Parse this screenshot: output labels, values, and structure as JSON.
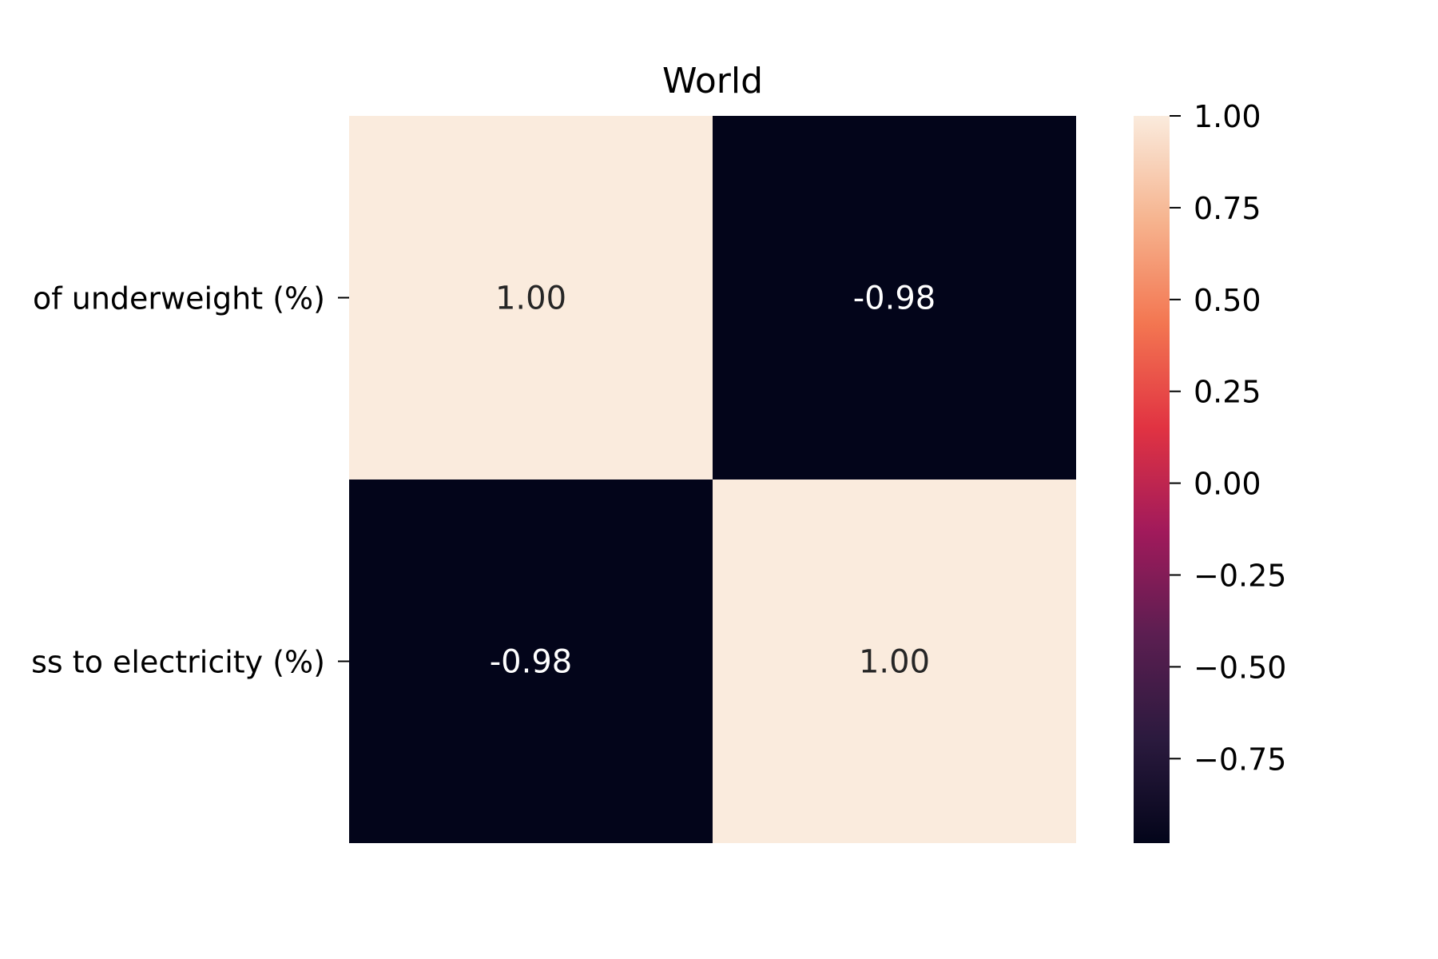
{
  "chart_data": {
    "type": "heatmap",
    "title": "World",
    "row_labels": [
      "of underweight (%)",
      "ss to electricity (%)"
    ],
    "matrix": [
      [
        1.0,
        -0.98
      ],
      [
        -0.98,
        1.0
      ]
    ],
    "cell_labels": [
      [
        "1.00",
        "-0.98"
      ],
      [
        "-0.98",
        "1.00"
      ]
    ],
    "colorbar": {
      "vmin": -0.98,
      "vmax": 1.0,
      "ticks": [
        1.0,
        0.75,
        0.5,
        0.25,
        0.0,
        -0.25,
        -0.5,
        -0.75
      ],
      "tick_labels": [
        "1.00",
        "0.75",
        "0.50",
        "0.25",
        "0.00",
        "−0.25",
        "−0.50",
        "−0.75"
      ]
    },
    "colormap": [
      "#03051a",
      "#2b1a3e",
      "#5b1e51",
      "#a11a5b",
      "#e13342",
      "#f37651",
      "#f6b48f",
      "#faebdd"
    ],
    "xlabel": "",
    "ylabel": ""
  }
}
